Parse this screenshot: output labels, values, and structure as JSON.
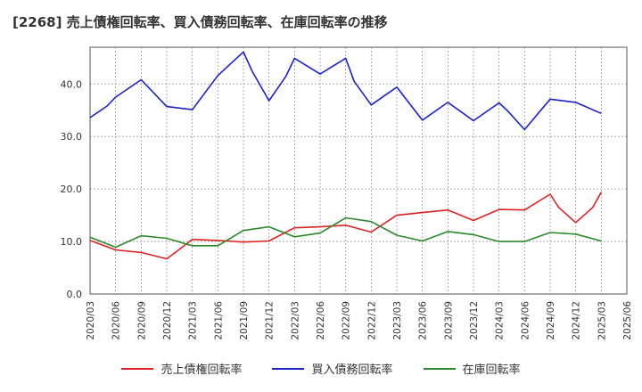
{
  "chart_data": {
    "type": "line",
    "title": "[2268]  売上債権回転率、買入債務回転率、在庫回転率の推移",
    "xlabel": "",
    "ylabel": "",
    "ylim": [
      0,
      47
    ],
    "yticks": [
      0.0,
      10.0,
      20.0,
      30.0,
      40.0
    ],
    "ytick_labels": [
      "0.0",
      "10.0",
      "20.0",
      "30.0",
      "40.0"
    ],
    "grid": true,
    "legend_position": "bottom-center",
    "categories": [
      "2020/03",
      "2020/06",
      "2020/09",
      "2020/12",
      "2021/03",
      "2021/06",
      "2021/09",
      "2021/12",
      "2022/03",
      "2022/06",
      "2022/09",
      "2022/12",
      "2023/03",
      "2023/06",
      "2023/09",
      "2023/12",
      "2024/03",
      "2024/06",
      "2024/09",
      "2024/12",
      "2025/03",
      "2025/06"
    ],
    "series": [
      {
        "name": "売上債権回転率",
        "color": "#dd2222",
        "x": [
          "2020/03",
          "2020/06",
          "2020/09",
          "2020/12",
          "2021/01",
          "2021/03",
          "2021/06",
          "2021/09",
          "2021/12",
          "2022/03",
          "2022/06",
          "2022/09",
          "2022/12",
          "2023/03",
          "2023/06",
          "2023/09",
          "2023/12",
          "2024/03",
          "2024/06",
          "2024/09",
          "2024/10",
          "2024/12",
          "2025/02",
          "2025/03"
        ],
        "values": [
          10.2,
          8.4,
          7.9,
          6.7,
          7.9,
          10.4,
          10.2,
          9.9,
          10.1,
          12.6,
          12.8,
          13.1,
          11.8,
          15.0,
          15.5,
          16.0,
          14.0,
          16.1,
          16.0,
          19.0,
          16.5,
          13.6,
          16.5,
          19.4
        ]
      },
      {
        "name": "買入債務回転率",
        "color": "#1a22cc",
        "x": [
          "2020/03",
          "2020/05",
          "2020/06",
          "2020/09",
          "2020/12",
          "2021/03",
          "2021/06",
          "2021/09",
          "2021/10",
          "2021/12",
          "2022/02",
          "2022/03",
          "2022/06",
          "2022/09",
          "2022/10",
          "2022/12",
          "2023/03",
          "2023/05",
          "2023/06",
          "2023/09",
          "2023/12",
          "2024/03",
          "2024/04",
          "2024/06",
          "2024/09",
          "2024/12",
          "2025/03"
        ],
        "values": [
          33.6,
          35.8,
          37.5,
          40.8,
          35.7,
          35.1,
          41.6,
          46.1,
          42.5,
          36.8,
          41.5,
          44.9,
          41.9,
          44.9,
          40.5,
          36.0,
          39.4,
          35.2,
          33.1,
          36.5,
          33.0,
          36.4,
          34.9,
          31.3,
          37.1,
          36.5,
          34.4
        ]
      },
      {
        "name": "在庫回転率",
        "color": "#2a8a2a",
        "x": [
          "2020/03",
          "2020/06",
          "2020/09",
          "2020/12",
          "2021/03",
          "2021/06",
          "2021/09",
          "2021/12",
          "2022/03",
          "2022/06",
          "2022/09",
          "2022/12",
          "2023/03",
          "2023/06",
          "2023/09",
          "2023/12",
          "2024/03",
          "2024/06",
          "2024/09",
          "2024/12",
          "2025/03"
        ],
        "values": [
          10.8,
          8.9,
          11.1,
          10.6,
          9.2,
          9.2,
          12.1,
          12.8,
          10.9,
          11.6,
          14.5,
          13.8,
          11.2,
          10.1,
          11.9,
          11.3,
          10.0,
          10.0,
          11.7,
          11.4,
          10.1
        ]
      }
    ]
  }
}
